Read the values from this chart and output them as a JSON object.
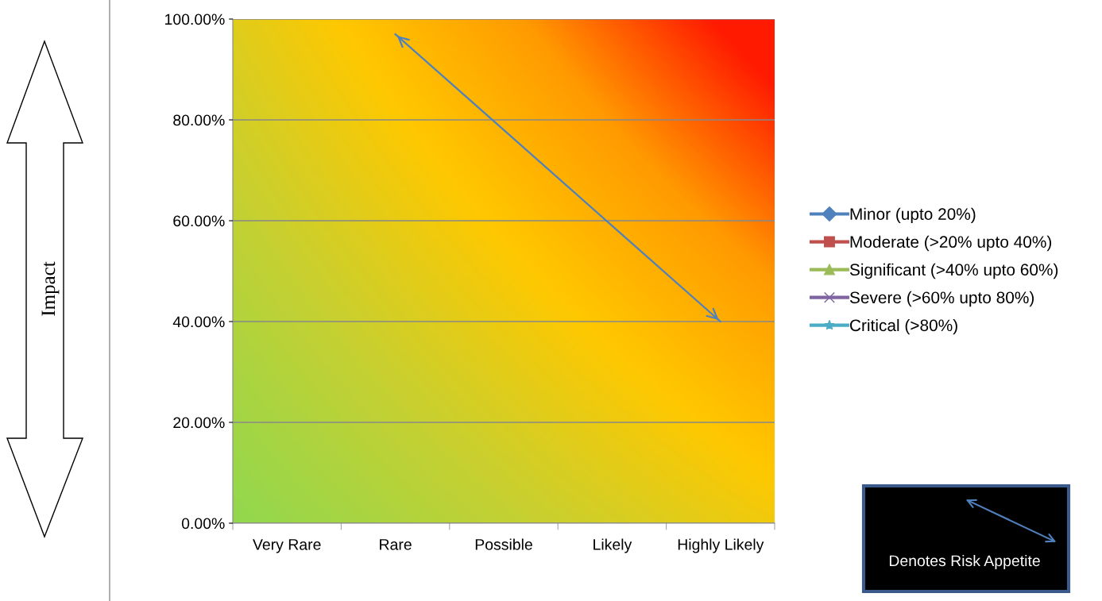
{
  "chart_data": {
    "type": "line",
    "categories": [
      "Very Rare",
      "Rare",
      "Possible",
      "Likely",
      "Highly Likely"
    ],
    "series": [
      {
        "name": "Minor (upto 20%)",
        "color": "#4f81bd",
        "marker": "diamond",
        "values": [
          null,
          null,
          null,
          null,
          null
        ]
      },
      {
        "name": "Moderate (>20% upto 40%)",
        "color": "#c0504d",
        "marker": "square",
        "values": [
          null,
          null,
          null,
          null,
          null
        ]
      },
      {
        "name": "Significant (>40% upto 60%)",
        "color": "#9bbb59",
        "marker": "triangle",
        "values": [
          null,
          null,
          null,
          null,
          null
        ]
      },
      {
        "name": "Severe (>60% upto 80%)",
        "color": "#8064a2",
        "marker": "cross",
        "values": [
          null,
          null,
          null,
          null,
          null
        ]
      },
      {
        "name": "Critical (>80%)",
        "color": "#4bacc6",
        "marker": "star",
        "values": [
          null,
          null,
          null,
          null,
          null
        ]
      },
      {
        "type": "line",
        "line_style": "solid",
        "marker": "none",
        "color": "#4f81bd",
        "values": [
          null,
          97,
          78,
          59,
          40
        ]
      }
    ],
    "ylim": [
      0,
      100
    ],
    "yticks": [
      {
        "value": 0,
        "label": "0.00%"
      },
      {
        "value": 20,
        "label": "20.00%"
      },
      {
        "value": 40,
        "label": "40.00%"
      },
      {
        "value": 60,
        "label": "60.00%"
      },
      {
        "value": 80,
        "label": "80.00%"
      },
      {
        "value": 100,
        "label": "100.00%"
      }
    ],
    "grid": "y",
    "legend": "right",
    "annotations": [
      "Denotes Risk Appetite",
      "Impact"
    ]
  }
}
